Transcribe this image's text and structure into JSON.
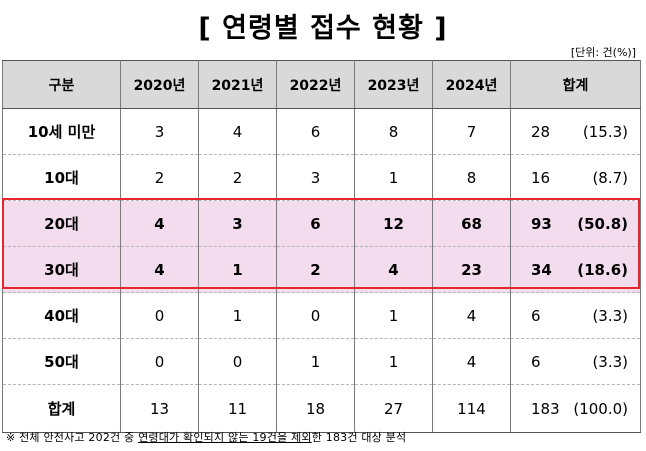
{
  "title": "[ 연령별 접수 현황 ]",
  "unit": "[단위: 건(%)]",
  "columns": [
    "구분",
    "2020년",
    "2021년",
    "2022년",
    "2023년",
    "2024년",
    "합계"
  ],
  "rows": [
    {
      "label": "10세 미만",
      "values": [
        "3",
        "4",
        "6",
        "8",
        "7"
      ],
      "total": "28",
      "pct": "(15.3)"
    },
    {
      "label": "10대",
      "values": [
        "2",
        "2",
        "3",
        "1",
        "8"
      ],
      "total": "16",
      "pct": "(8.7)"
    },
    {
      "label": "20대",
      "values": [
        "4",
        "3",
        "6",
        "12",
        "68"
      ],
      "total": "93",
      "pct": "(50.8)"
    },
    {
      "label": "30대",
      "values": [
        "4",
        "1",
        "2",
        "4",
        "23"
      ],
      "total": "34",
      "pct": "(18.6)"
    },
    {
      "label": "40대",
      "values": [
        "0",
        "1",
        "0",
        "1",
        "4"
      ],
      "total": "6",
      "pct": "(3.3)"
    },
    {
      "label": "50대",
      "values": [
        "0",
        "0",
        "1",
        "1",
        "4"
      ],
      "total": "6",
      "pct": "(3.3)"
    },
    {
      "label": "합계",
      "values": [
        "13",
        "11",
        "18",
        "27",
        "114"
      ],
      "total": "183",
      "pct": "(100.0)"
    }
  ],
  "footnote": {
    "prefix": "※ 전체 안전사고 202건 중 ",
    "underlined": "연령대가 확인되지 않는 19건을 제외",
    "suffix": "한 183건 대상 분석"
  },
  "highlight_color": "#e8262e",
  "highlight_fill": "#f2dcee",
  "header_fill": "#d9d9d9"
}
